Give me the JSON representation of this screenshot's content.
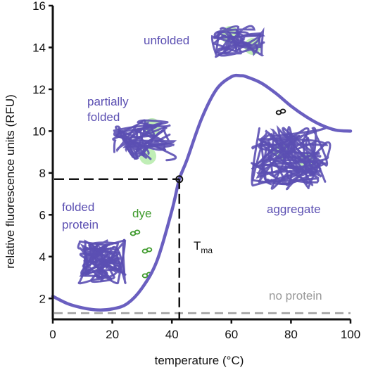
{
  "chart_data": {
    "type": "line",
    "xlabel": "temperature (°C)",
    "ylabel": "relative fluorescence units (RFU)",
    "xlim": [
      0,
      100
    ],
    "ylim": [
      1,
      16
    ],
    "xticks": [
      "0",
      "20",
      "40",
      "60",
      "80",
      "100"
    ],
    "yticks": [
      "2",
      "4",
      "6",
      "8",
      "10",
      "12",
      "14",
      "16"
    ],
    "grid": false,
    "series": [
      {
        "x": [
          0,
          5,
          10,
          15,
          20,
          25,
          30,
          35,
          40,
          42.5,
          45,
          50,
          55,
          60,
          63,
          65,
          70,
          75,
          80,
          85,
          90,
          95,
          100
        ],
        "y": [
          2.1,
          1.75,
          1.55,
          1.45,
          1.5,
          1.75,
          2.5,
          3.8,
          6.2,
          7.7,
          8.6,
          10.6,
          12.0,
          12.6,
          12.65,
          12.6,
          12.3,
          11.8,
          11.2,
          10.7,
          10.3,
          10.05,
          10.0
        ]
      }
    ],
    "baseline": {
      "label": "no protein",
      "y": 1.3
    },
    "tma": {
      "x": 42.5,
      "y": 7.7,
      "label": "T",
      "subscript": "ma"
    },
    "annotations": {
      "folded": "folded\nprotein",
      "dye": "dye",
      "partially_folded": "partially\nfolded",
      "unfolded": "unfolded",
      "aggregate": "aggregate"
    },
    "colors": {
      "curve": "#6a5fc0",
      "protein": "#5b4fb2",
      "dye": "#3e9a2c",
      "glow": "#8de07a",
      "baseline": "#a0a0a0",
      "dashed": "#111111"
    }
  }
}
